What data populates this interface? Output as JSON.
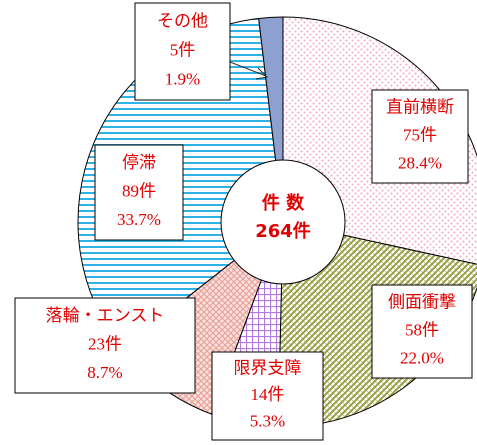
{
  "chart_data": {
    "type": "donut",
    "center_label": "件 数",
    "total": 264,
    "total_label": "264件",
    "categories": [
      "直前横断",
      "側面衝撃",
      "限界支障",
      "落輪・エンスト",
      "停滞",
      "その他"
    ],
    "values": [
      75,
      58,
      14,
      23,
      89,
      5
    ],
    "value_labels": [
      "75件",
      "58件",
      "14件",
      "23件",
      "89件",
      "5件"
    ],
    "percents": [
      28.4,
      22.0,
      5.3,
      8.7,
      33.7,
      1.9
    ],
    "percent_labels": [
      "28.4%",
      "22.0%",
      "5.3%",
      "8.7%",
      "33.7%",
      "1.9%"
    ],
    "colors": [
      "#f4a6c8",
      "#9aa046",
      "#b27ae0",
      "#e8a29a",
      "#2fb3e6",
      "#8da0d0"
    ]
  }
}
